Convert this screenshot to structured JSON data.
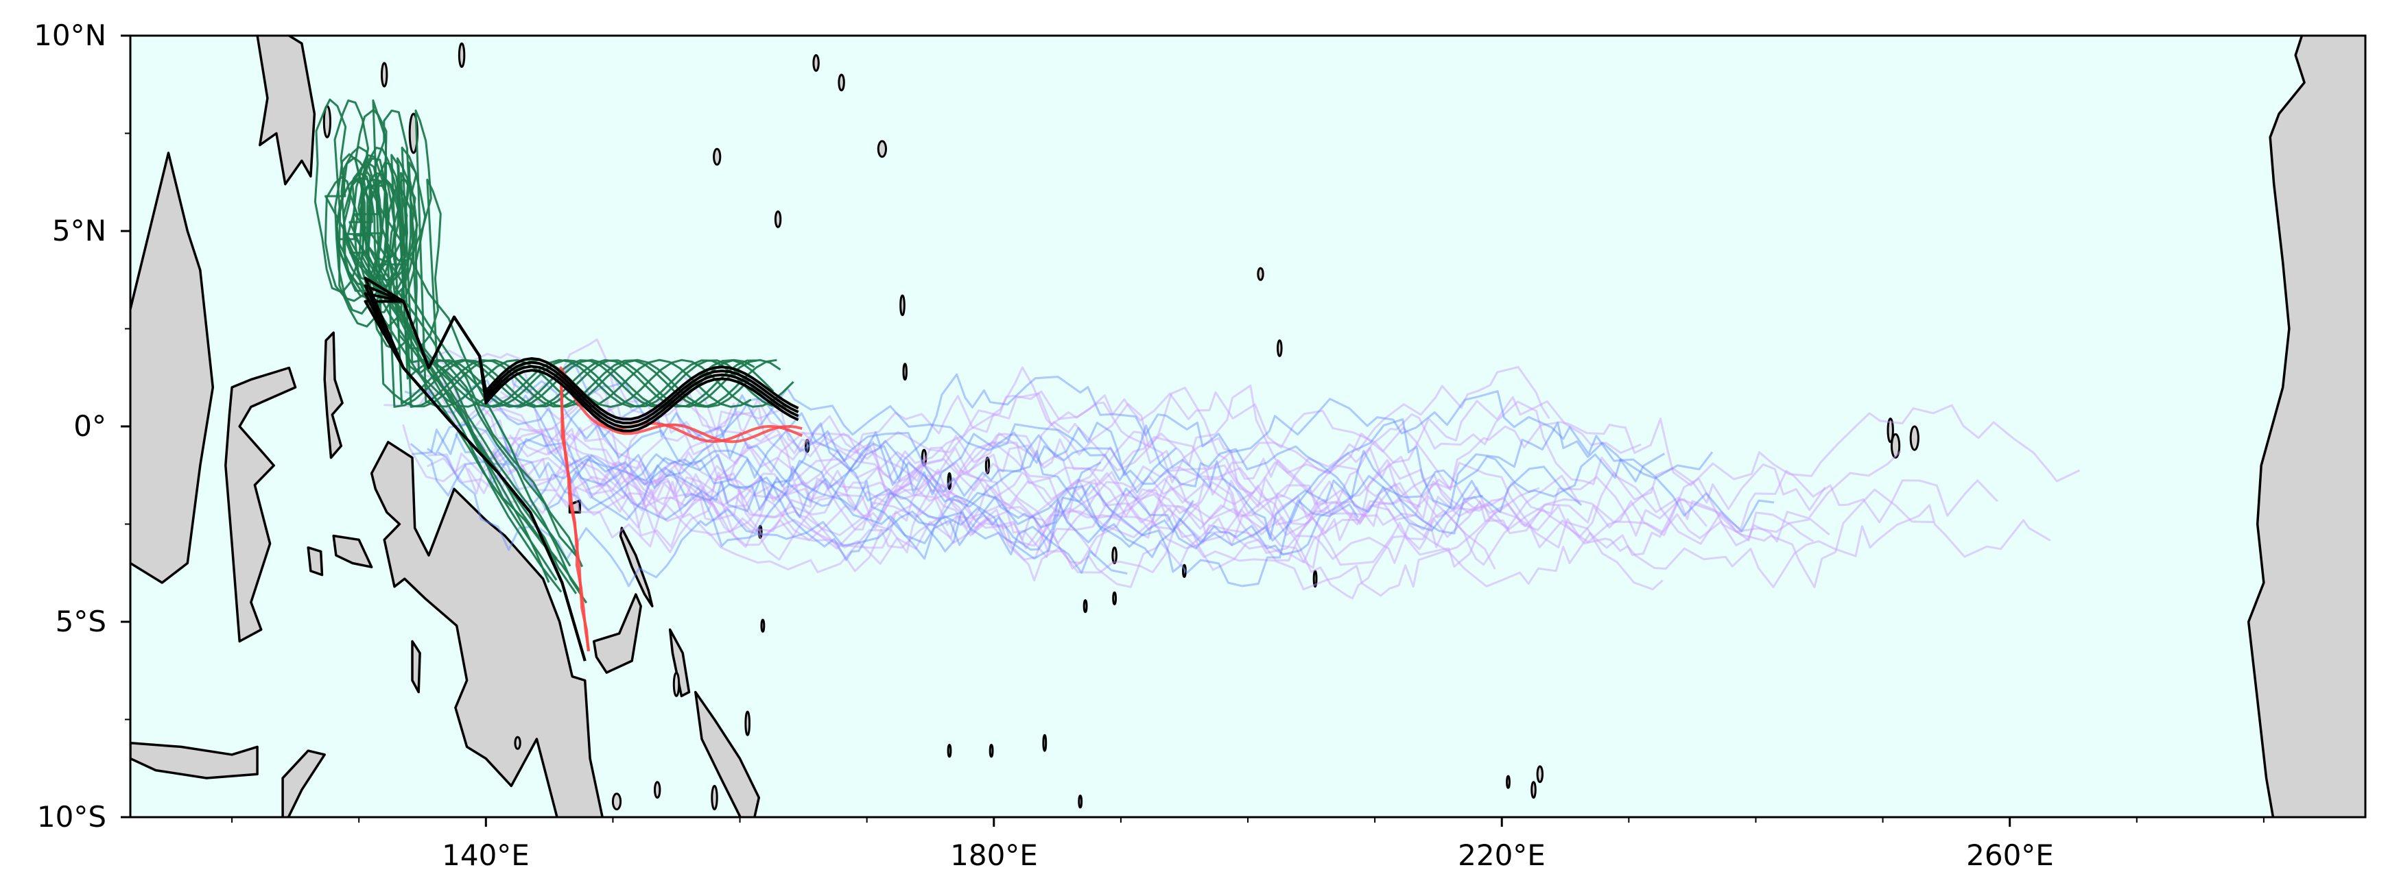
{
  "map": {
    "lon_range": [
      112,
      288
    ],
    "lat_range": [
      -10,
      10
    ],
    "ocean_color": "#e8fffc",
    "land_color": "#d3d3d3",
    "coastline_color": "#000000",
    "y_ticks": [
      {
        "lat": 10,
        "label": "10°N"
      },
      {
        "lat": 5,
        "label": "5°N"
      },
      {
        "lat": 0,
        "label": "0°"
      },
      {
        "lat": -5,
        "label": "5°S"
      },
      {
        "lat": -10,
        "label": "10°S"
      }
    ],
    "x_ticks": [
      {
        "lon": 140,
        "label": "140°E"
      },
      {
        "lon": 180,
        "label": "180°E"
      },
      {
        "lon": 220,
        "label": "220°E"
      },
      {
        "lon": 260,
        "label": "260°E"
      }
    ],
    "x_minor_ticks": [
      120,
      130,
      150,
      160,
      170,
      190,
      200,
      210,
      230,
      240,
      250,
      270,
      280
    ],
    "y_minor_ticks": [
      7.5,
      2.5,
      -2.5,
      -7.5
    ]
  },
  "track_groups": [
    {
      "color": "#cc99ff",
      "opacity": 0.45,
      "count": 20,
      "description": "long eastward drift tracks"
    },
    {
      "color": "#6688ff",
      "opacity": 0.45,
      "count": 10,
      "description": "eastward drift tracks"
    },
    {
      "color": "#1e7a4e",
      "opacity": 0.95,
      "count": 10,
      "description": "western loops"
    },
    {
      "color": "#ff4444",
      "opacity": 0.85,
      "count": 2,
      "description": "southward coastal tracks"
    },
    {
      "color": "#000000",
      "opacity": 1.0,
      "count": 4,
      "description": "mean tracks"
    }
  ]
}
